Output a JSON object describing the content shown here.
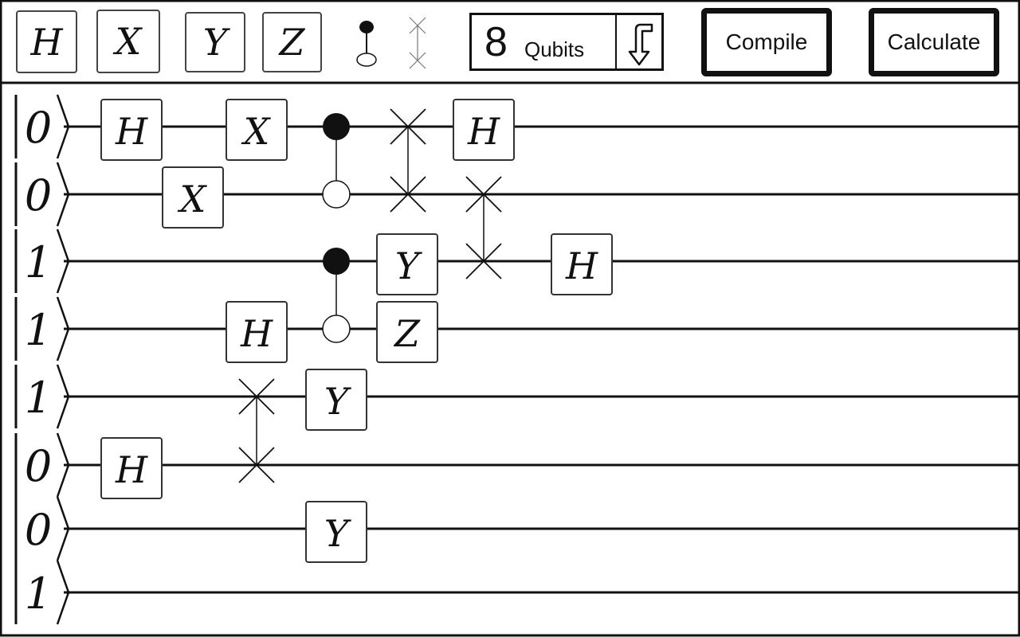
{
  "toolbar": {
    "gates": [
      {
        "id": "h",
        "label": "H"
      },
      {
        "id": "x",
        "label": "X"
      },
      {
        "id": "y",
        "label": "Y"
      },
      {
        "id": "z",
        "label": "Z"
      }
    ],
    "tools": [
      {
        "id": "control",
        "icon": "control-gate-icon"
      },
      {
        "id": "swap",
        "icon": "swap-gate-icon"
      }
    ],
    "qubit_count": "8",
    "qubit_label": "Qubits",
    "qubit_toggle_icon": "arrow-down-icon",
    "compile_label": "Compile",
    "calculate_label": "Calculate"
  },
  "circuit": {
    "initial_states": [
      "0",
      "0",
      "1",
      "1",
      "1",
      "0",
      "0",
      "1"
    ],
    "gates": [
      {
        "type": "H",
        "qubit": 0,
        "column": 1
      },
      {
        "type": "X",
        "qubit": 1,
        "column": 2
      },
      {
        "type": "X",
        "qubit": 0,
        "column": 3
      },
      {
        "type": "H",
        "qubit": 3,
        "column": 3
      },
      {
        "type": "H",
        "qubit": 5,
        "column": 1
      },
      {
        "type": "Y",
        "qubit": 4,
        "column": 4
      },
      {
        "type": "Y",
        "qubit": 6,
        "column": 4
      },
      {
        "type": "Y",
        "qubit": 2,
        "column": 5
      },
      {
        "type": "Z",
        "qubit": 3,
        "column": 5
      },
      {
        "type": "H",
        "qubit": 0,
        "column": 7
      },
      {
        "type": "H",
        "qubit": 2,
        "column": 8
      }
    ],
    "controls": [
      {
        "control": 0,
        "target": 1,
        "column": 4
      },
      {
        "control": 2,
        "target": 3,
        "column": 4
      }
    ],
    "swaps": [
      {
        "qubits": [
          0,
          1
        ],
        "column": 6
      },
      {
        "qubits": [
          1,
          2
        ],
        "column": 7
      },
      {
        "qubits": [
          4,
          5
        ],
        "column": 3
      }
    ]
  }
}
